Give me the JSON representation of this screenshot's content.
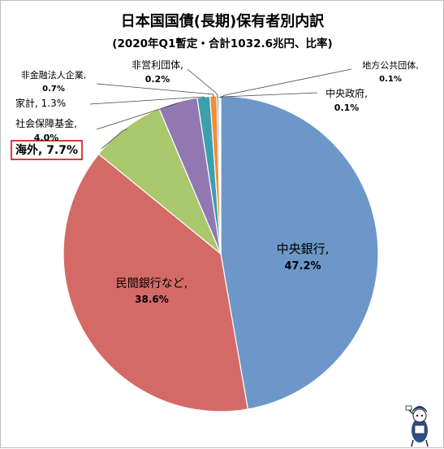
{
  "chart_data": {
    "type": "pie",
    "title": "日本国国債(長期)保有者別内訳",
    "subtitle": "(2020年Q1暫定・合計1032.6兆円、比率)",
    "slices": [
      {
        "label": "中央銀行,",
        "value_text": "47.2%",
        "value": 47.2,
        "color": "#6c97c8"
      },
      {
        "label": "民間銀行など,",
        "value_text": "38.6%",
        "value": 38.6,
        "color": "#d46a66"
      },
      {
        "label": "海外,",
        "value_text": "7.7%",
        "value": 7.7,
        "color": "#a9c76b"
      },
      {
        "label": "社会保障基金,",
        "value_text": "4.0%",
        "value": 4.0,
        "color": "#9278b3"
      },
      {
        "label": "家計,",
        "value_text": "1.3%",
        "value": 1.3,
        "color": "#3c9fad"
      },
      {
        "label": "非金融法人企業,",
        "value_text": "0.7%",
        "value": 0.7,
        "color": "#ee8e3a"
      },
      {
        "label": "非営利団体,",
        "value_text": "0.2%",
        "value": 0.2,
        "color": "#7d9ccd"
      },
      {
        "label": "地方公共団体,",
        "value_text": "0.1%",
        "value": 0.1,
        "color": "#d58a86"
      },
      {
        "label": "中央政府,",
        "value_text": "0.1%",
        "value": 0.1,
        "color": "#b8cf8a"
      }
    ],
    "highlight": "海外"
  }
}
